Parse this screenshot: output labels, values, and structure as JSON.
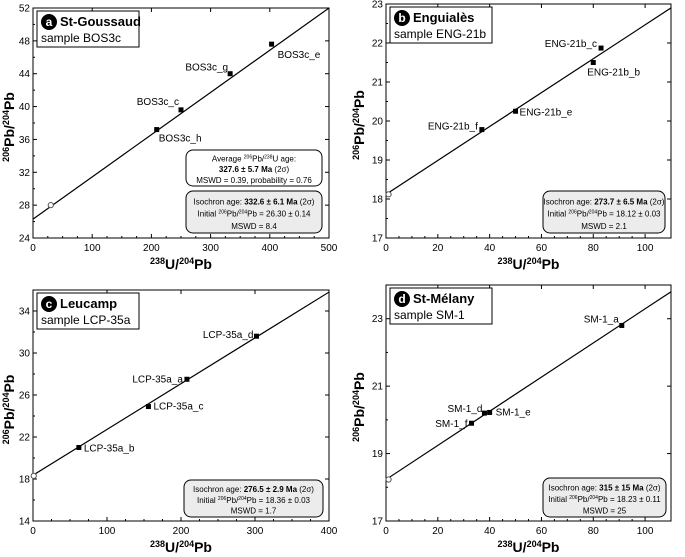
{
  "chart_data": [
    {
      "type": "scatter",
      "panel_letter": "a",
      "title": "St-Goussaud",
      "subtitle": "sample BOS3c",
      "xlabel": "238U/204Pb",
      "ylabel": "206Pb/204Pb",
      "xlim": [
        0,
        500
      ],
      "ylim": [
        24,
        52
      ],
      "xticks": [
        0,
        100,
        200,
        300,
        400,
        500
      ],
      "yticks": [
        24,
        28,
        32,
        36,
        40,
        44,
        48,
        52
      ],
      "grid": false,
      "points": [
        {
          "label": "BOS3c_e",
          "x": 403,
          "y": 47.6
        },
        {
          "label": "BOS3c_g",
          "x": 333,
          "y": 44.0
        },
        {
          "label": "BOS3c_c",
          "x": 250,
          "y": 39.6
        },
        {
          "label": "BOS3c_h",
          "x": 209,
          "y": 37.2
        }
      ],
      "intercept_point": {
        "x": 30,
        "y": 28.0
      },
      "isochron_line": {
        "x": [
          0,
          500
        ],
        "y": [
          26.3,
          52.0
        ]
      },
      "annotations": [
        {
          "lines": [
            "Average 206Pb/238U age:",
            "327.6 ± 5.7 Ma (2σ)",
            "MSWD = 0.39, probability = 0.76"
          ]
        },
        {
          "lines": [
            "Isochron age: 332.6 ± 6.1 Ma (2σ)",
            "Initial 206Pb/204Pb = 26.30 ± 0.14",
            "MSWD = 8.4"
          ]
        }
      ]
    },
    {
      "type": "scatter",
      "panel_letter": "b",
      "title": "Enguialès",
      "subtitle": "sample ENG-21b",
      "xlabel": "238U/204Pb",
      "ylabel": "206Pb/204Pb",
      "xlim": [
        0,
        110
      ],
      "ylim": [
        17,
        23
      ],
      "xticks": [
        0,
        20,
        40,
        60,
        80,
        100
      ],
      "yticks": [
        17,
        18,
        19,
        20,
        21,
        22,
        23
      ],
      "grid": false,
      "points": [
        {
          "label": "ENG-21b_c",
          "x": 83,
          "y": 21.87
        },
        {
          "label": "ENG-21b_b",
          "x": 80,
          "y": 21.5
        },
        {
          "label": "ENG-21b_e",
          "x": 50,
          "y": 20.25
        },
        {
          "label": "ENG-21b_f",
          "x": 37,
          "y": 19.78
        }
      ],
      "intercept_point": {
        "x": 1,
        "y": 18.12
      },
      "isochron_line": {
        "x": [
          0,
          110
        ],
        "y": [
          18.12,
          22.9
        ]
      },
      "annotations": [
        {
          "lines": [
            "Isochron age: 273.7 ± 6.5 Ma (2σ)",
            "Initial 206Pb/204Pb = 18.12 ± 0.03",
            "MSWD = 2.1"
          ]
        }
      ]
    },
    {
      "type": "scatter",
      "panel_letter": "c",
      "title": "Leucamp",
      "subtitle": "sample LCP-35a",
      "xlabel": "238U/204Pb",
      "ylabel": "206Pb/204Pb",
      "xlim": [
        0,
        400
      ],
      "ylim": [
        14,
        36
      ],
      "xticks": [
        0,
        100,
        200,
        300,
        400
      ],
      "yticks": [
        14,
        18,
        22,
        26,
        30,
        34
      ],
      "grid": false,
      "points": [
        {
          "label": "LCP-35a_d",
          "x": 302,
          "y": 31.6
        },
        {
          "label": "LCP-35a_a",
          "x": 208,
          "y": 27.5
        },
        {
          "label": "LCP-35a_c",
          "x": 156,
          "y": 24.9
        },
        {
          "label": "LCP-35a_b",
          "x": 62,
          "y": 21.0
        }
      ],
      "intercept_point": {
        "x": 1,
        "y": 18.3
      },
      "isochron_line": {
        "x": [
          0,
          400
        ],
        "y": [
          18.36,
          35.8
        ]
      },
      "annotations": [
        {
          "lines": [
            "Isochron age: 276.5 ± 2.9 Ma (2σ)",
            "Initial 206Pb/204Pb = 18.36 ± 0.03",
            "MSWD = 1.7"
          ]
        }
      ]
    },
    {
      "type": "scatter",
      "panel_letter": "d",
      "title": "St-Mélany",
      "subtitle": "sample SM-1",
      "xlabel": "238U/204Pb",
      "ylabel": "206Pb/204Pb",
      "xlim": [
        0,
        110
      ],
      "ylim": [
        17,
        24
      ],
      "xticks": [
        0,
        20,
        40,
        60,
        80,
        100
      ],
      "yticks": [
        17,
        19,
        21,
        23
      ],
      "grid": false,
      "points": [
        {
          "label": "SM-1_a",
          "x": 91,
          "y": 22.8
        },
        {
          "label": "SM-1_d",
          "x": 38,
          "y": 20.2
        },
        {
          "label": "SM-1_e",
          "x": 40,
          "y": 20.22
        },
        {
          "label": "SM-1_f",
          "x": 33,
          "y": 19.9
        }
      ],
      "intercept_point": {
        "x": 1,
        "y": 18.23
      },
      "isochron_line": {
        "x": [
          0,
          110
        ],
        "y": [
          18.23,
          23.8
        ]
      },
      "annotations": [
        {
          "lines": [
            "Isochron age: 315 ± 15 Ma (2σ)",
            "Initial 206Pb/204Pb = 18.23 ± 0.11",
            "MSWD = 25"
          ]
        }
      ]
    }
  ]
}
